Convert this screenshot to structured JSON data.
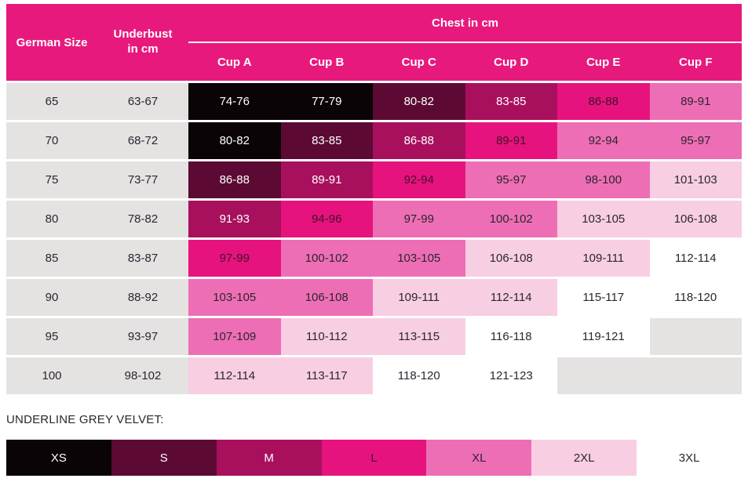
{
  "colors": {
    "header_bg": "#E8197D",
    "header_text": "#FFFFFF",
    "label_bg": "#E5E2E2",
    "dark_text": "#2B2630",
    "size_colors": {
      "XS": {
        "bg": "#0A0406",
        "text": "#FFFFFF"
      },
      "S": {
        "bg": "#5C0A33",
        "text": "#FFFFFF"
      },
      "M": {
        "bg": "#A8105E",
        "text": "#FFFFFF"
      },
      "L": {
        "bg": "#E6137E",
        "text": "#421028"
      },
      "XL": {
        "bg": "#EE6EB5",
        "text": "#2B2630"
      },
      "2XL": {
        "bg": "#F8CEE3",
        "text": "#2B2630"
      },
      "3XL": {
        "bg": "#FFFFFF",
        "text": "#2B2630"
      }
    }
  },
  "chart_data": {
    "type": "table",
    "header": {
      "german_size": "German Size",
      "underbust_line1": "Underbust",
      "underbust_line2": "in cm",
      "chest_group": "Chest in cm",
      "cups": [
        "Cup A",
        "Cup B",
        "Cup C",
        "Cup D",
        "Cup E",
        "Cup F"
      ]
    },
    "rows": [
      {
        "size": "65",
        "underbust": "63-67",
        "cells": [
          {
            "v": "74-76",
            "s": "XS"
          },
          {
            "v": "77-79",
            "s": "XS"
          },
          {
            "v": "80-82",
            "s": "S"
          },
          {
            "v": "83-85",
            "s": "M"
          },
          {
            "v": "86-88",
            "s": "L"
          },
          {
            "v": "89-91",
            "s": "XL"
          }
        ]
      },
      {
        "size": "70",
        "underbust": "68-72",
        "cells": [
          {
            "v": "80-82",
            "s": "XS"
          },
          {
            "v": "83-85",
            "s": "S"
          },
          {
            "v": "86-88",
            "s": "M"
          },
          {
            "v": "89-91",
            "s": "L"
          },
          {
            "v": "92-94",
            "s": "XL"
          },
          {
            "v": "95-97",
            "s": "XL"
          }
        ]
      },
      {
        "size": "75",
        "underbust": "73-77",
        "cells": [
          {
            "v": "86-88",
            "s": "S"
          },
          {
            "v": "89-91",
            "s": "M"
          },
          {
            "v": "92-94",
            "s": "L"
          },
          {
            "v": "95-97",
            "s": "XL"
          },
          {
            "v": "98-100",
            "s": "XL"
          },
          {
            "v": "101-103",
            "s": "2XL"
          }
        ]
      },
      {
        "size": "80",
        "underbust": "78-82",
        "cells": [
          {
            "v": "91-93",
            "s": "M"
          },
          {
            "v": "94-96",
            "s": "L"
          },
          {
            "v": "97-99",
            "s": "XL"
          },
          {
            "v": "100-102",
            "s": "XL"
          },
          {
            "v": "103-105",
            "s": "2XL"
          },
          {
            "v": "106-108",
            "s": "2XL"
          }
        ]
      },
      {
        "size": "85",
        "underbust": "83-87",
        "cells": [
          {
            "v": "97-99",
            "s": "L"
          },
          {
            "v": "100-102",
            "s": "XL"
          },
          {
            "v": "103-105",
            "s": "XL"
          },
          {
            "v": "106-108",
            "s": "2XL"
          },
          {
            "v": "109-111",
            "s": "2XL"
          },
          {
            "v": "112-114",
            "s": "3XL"
          }
        ]
      },
      {
        "size": "90",
        "underbust": "88-92",
        "cells": [
          {
            "v": "103-105",
            "s": "XL"
          },
          {
            "v": "106-108",
            "s": "XL"
          },
          {
            "v": "109-111",
            "s": "2XL"
          },
          {
            "v": "112-114",
            "s": "2XL"
          },
          {
            "v": "115-117",
            "s": "3XL"
          },
          {
            "v": "118-120",
            "s": "3XL"
          }
        ]
      },
      {
        "size": "95",
        "underbust": "93-97",
        "cells": [
          {
            "v": "107-109",
            "s": "XL"
          },
          {
            "v": "110-112",
            "s": "2XL"
          },
          {
            "v": "113-115",
            "s": "2XL"
          },
          {
            "v": "116-118",
            "s": "3XL"
          },
          {
            "v": "119-121",
            "s": "3XL"
          },
          {
            "v": "",
            "s": "empty"
          }
        ]
      },
      {
        "size": "100",
        "underbust": "98-102",
        "cells": [
          {
            "v": "112-114",
            "s": "2XL"
          },
          {
            "v": "113-117",
            "s": "2XL"
          },
          {
            "v": "118-120",
            "s": "3XL"
          },
          {
            "v": "121-123",
            "s": "3XL"
          },
          {
            "v": "",
            "s": "empty"
          },
          {
            "v": "",
            "s": "empty"
          }
        ]
      }
    ],
    "legend": {
      "label": "UNDERLINE GREY VELVET:",
      "sizes": [
        "XS",
        "S",
        "M",
        "L",
        "XL",
        "2XL",
        "3XL"
      ]
    }
  }
}
